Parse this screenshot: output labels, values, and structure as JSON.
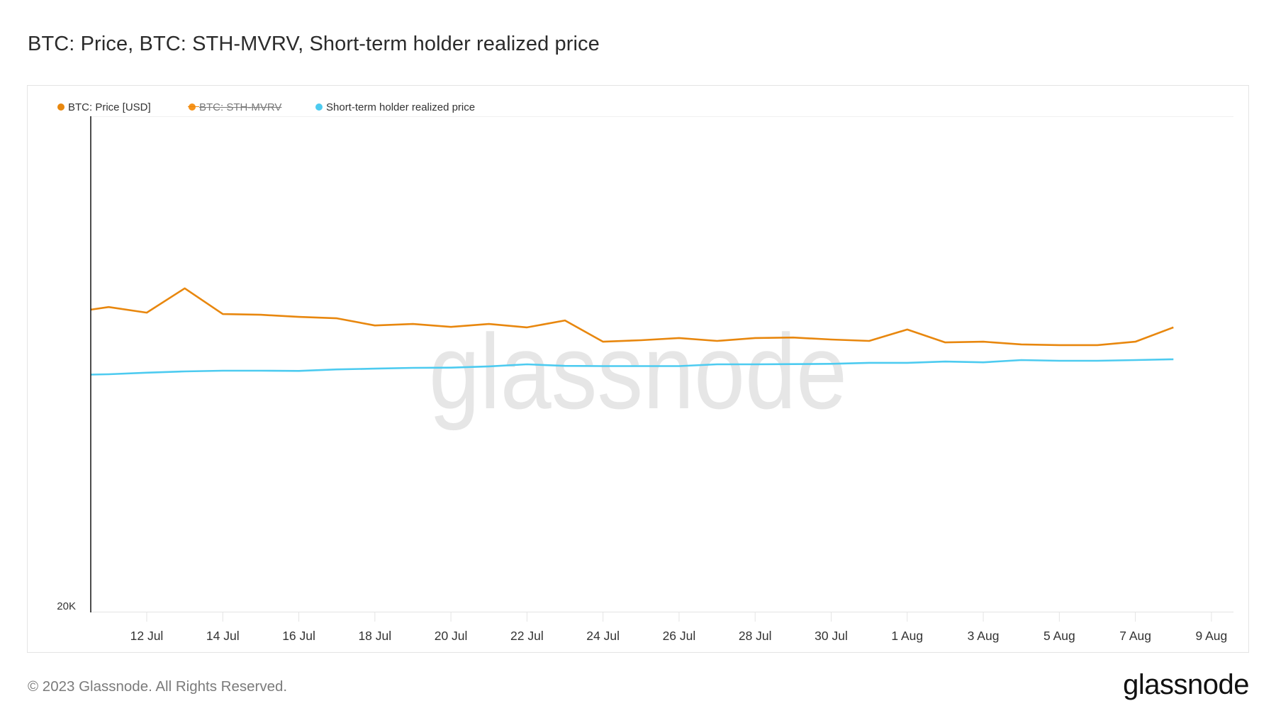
{
  "title": "BTC: Price, BTC: STH-MVRV, Short-term holder realized price",
  "legend": [
    {
      "label": "BTC: Price [USD]",
      "color": "#e8870e",
      "enabled": true
    },
    {
      "label": "BTC: STH-MVRV",
      "color": "#f7931a",
      "enabled": false
    },
    {
      "label": "Short-term holder realized price",
      "color": "#4dcbf0",
      "enabled": true
    }
  ],
  "watermark": "glassnode",
  "footer": {
    "copyright": "© 2023 Glassnode. All Rights Reserved.",
    "logo": "glassnode"
  },
  "chart_data": {
    "type": "line",
    "title": "BTC: Price, BTC: STH-MVRV, Short-term holder realized price",
    "xlabel": "",
    "ylabel": "",
    "yscale": "log",
    "ylim": [
      20000,
      40000
    ],
    "y_tick_labels": [
      "20K"
    ],
    "x_tick_labels": [
      "12 Jul",
      "14 Jul",
      "16 Jul",
      "18 Jul",
      "20 Jul",
      "22 Jul",
      "24 Jul",
      "26 Jul",
      "28 Jul",
      "30 Jul",
      "1 Aug",
      "3 Aug",
      "5 Aug",
      "7 Aug",
      "9 Aug"
    ],
    "x_tick_day_index": [
      2,
      4,
      6,
      8,
      10,
      12,
      14,
      16,
      18,
      20,
      22,
      24,
      26,
      28,
      30
    ],
    "grid": true,
    "legend_position": "top-left",
    "x": [
      "10 Jul",
      "11 Jul",
      "12 Jul",
      "13 Jul",
      "14 Jul",
      "15 Jul",
      "16 Jul",
      "17 Jul",
      "18 Jul",
      "19 Jul",
      "20 Jul",
      "21 Jul",
      "22 Jul",
      "23 Jul",
      "24 Jul",
      "25 Jul",
      "26 Jul",
      "27 Jul",
      "28 Jul",
      "29 Jul",
      "30 Jul",
      "31 Jul",
      "1 Aug",
      "2 Aug",
      "3 Aug",
      "4 Aug",
      "5 Aug",
      "6 Aug",
      "7 Aug",
      "8 Aug"
    ],
    "series": [
      {
        "name": "BTC: Price [USD]",
        "color": "#e8870e",
        "visible": true,
        "values": [
          30390,
          30630,
          30390,
          31440,
          30330,
          30300,
          30210,
          30150,
          29850,
          29910,
          29790,
          29910,
          29770,
          30060,
          29180,
          29240,
          29330,
          29210,
          29330,
          29350,
          29270,
          29210,
          29680,
          29150,
          29180,
          29070,
          29040,
          29040,
          29180,
          29770
        ]
      },
      {
        "name": "BTC: STH-MVRV",
        "color": "#f7931a",
        "visible": false,
        "values": []
      },
      {
        "name": "Short-term holder realized price",
        "color": "#4dcbf0",
        "visible": true,
        "values": [
          27850,
          27880,
          27940,
          27990,
          28020,
          28020,
          28010,
          28070,
          28100,
          28130,
          28140,
          28190,
          28270,
          28210,
          28200,
          28200,
          28200,
          28270,
          28270,
          28280,
          28290,
          28330,
          28330,
          28380,
          28350,
          28440,
          28410,
          28410,
          28440,
          28470
        ]
      }
    ]
  }
}
